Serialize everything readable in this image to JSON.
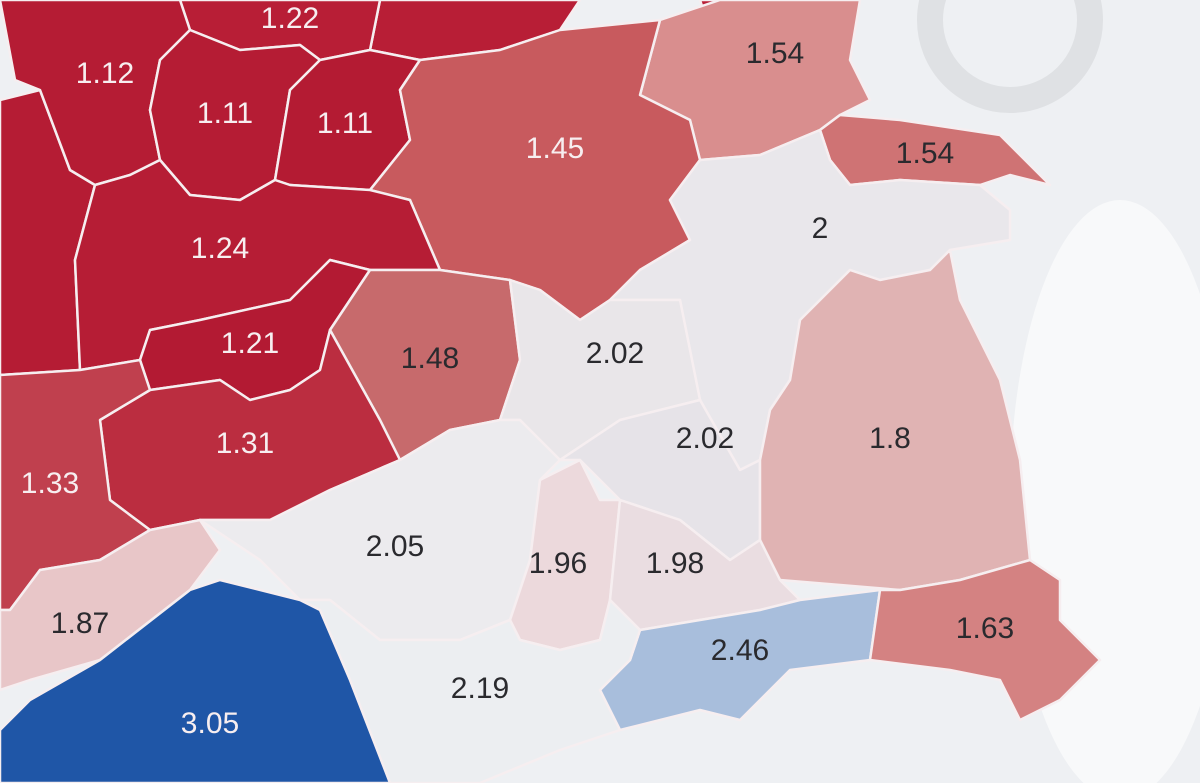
{
  "regions": [
    {
      "value": 1.22,
      "color": "#b81e36"
    },
    {
      "value": 1.12,
      "color": "#b51c34"
    },
    {
      "value": 1.11,
      "color": "#b51c34"
    },
    {
      "value": 1.11,
      "color": "#b41b33"
    },
    {
      "value": 1.54,
      "color": "#d98e8e"
    },
    {
      "value": 1.45,
      "color": "#c85a5e"
    },
    {
      "value": 1.54,
      "color": "#cf7374"
    },
    {
      "value": 2,
      "color": "#e9e7eb"
    },
    {
      "value": 1.24,
      "color": "#b61d35"
    },
    {
      "value": 1.21,
      "color": "#b31a33"
    },
    {
      "value": 1.48,
      "color": "#c76a6c"
    },
    {
      "value": 2.02,
      "color": "#e9e6e9"
    },
    {
      "value": 2.02,
      "color": "#e6e3e8"
    },
    {
      "value": 1.8,
      "color": "#e0b3b3"
    },
    {
      "value": 1.31,
      "color": "#bb2d40"
    },
    {
      "value": 1.33,
      "color": "#c0404e"
    },
    {
      "value": 2.05,
      "color": "#ecebee"
    },
    {
      "value": 1.96,
      "color": "#ecd9dc"
    },
    {
      "value": 1.98,
      "color": "#eadde1"
    },
    {
      "value": 1.87,
      "color": "#e8c6c8"
    },
    {
      "value": 2.46,
      "color": "#a8bedc"
    },
    {
      "value": 1.63,
      "color": "#d48282"
    },
    {
      "value": 2.19,
      "color": "#eceef1"
    },
    {
      "value": 3.05,
      "color": "#1f56a7"
    }
  ]
}
